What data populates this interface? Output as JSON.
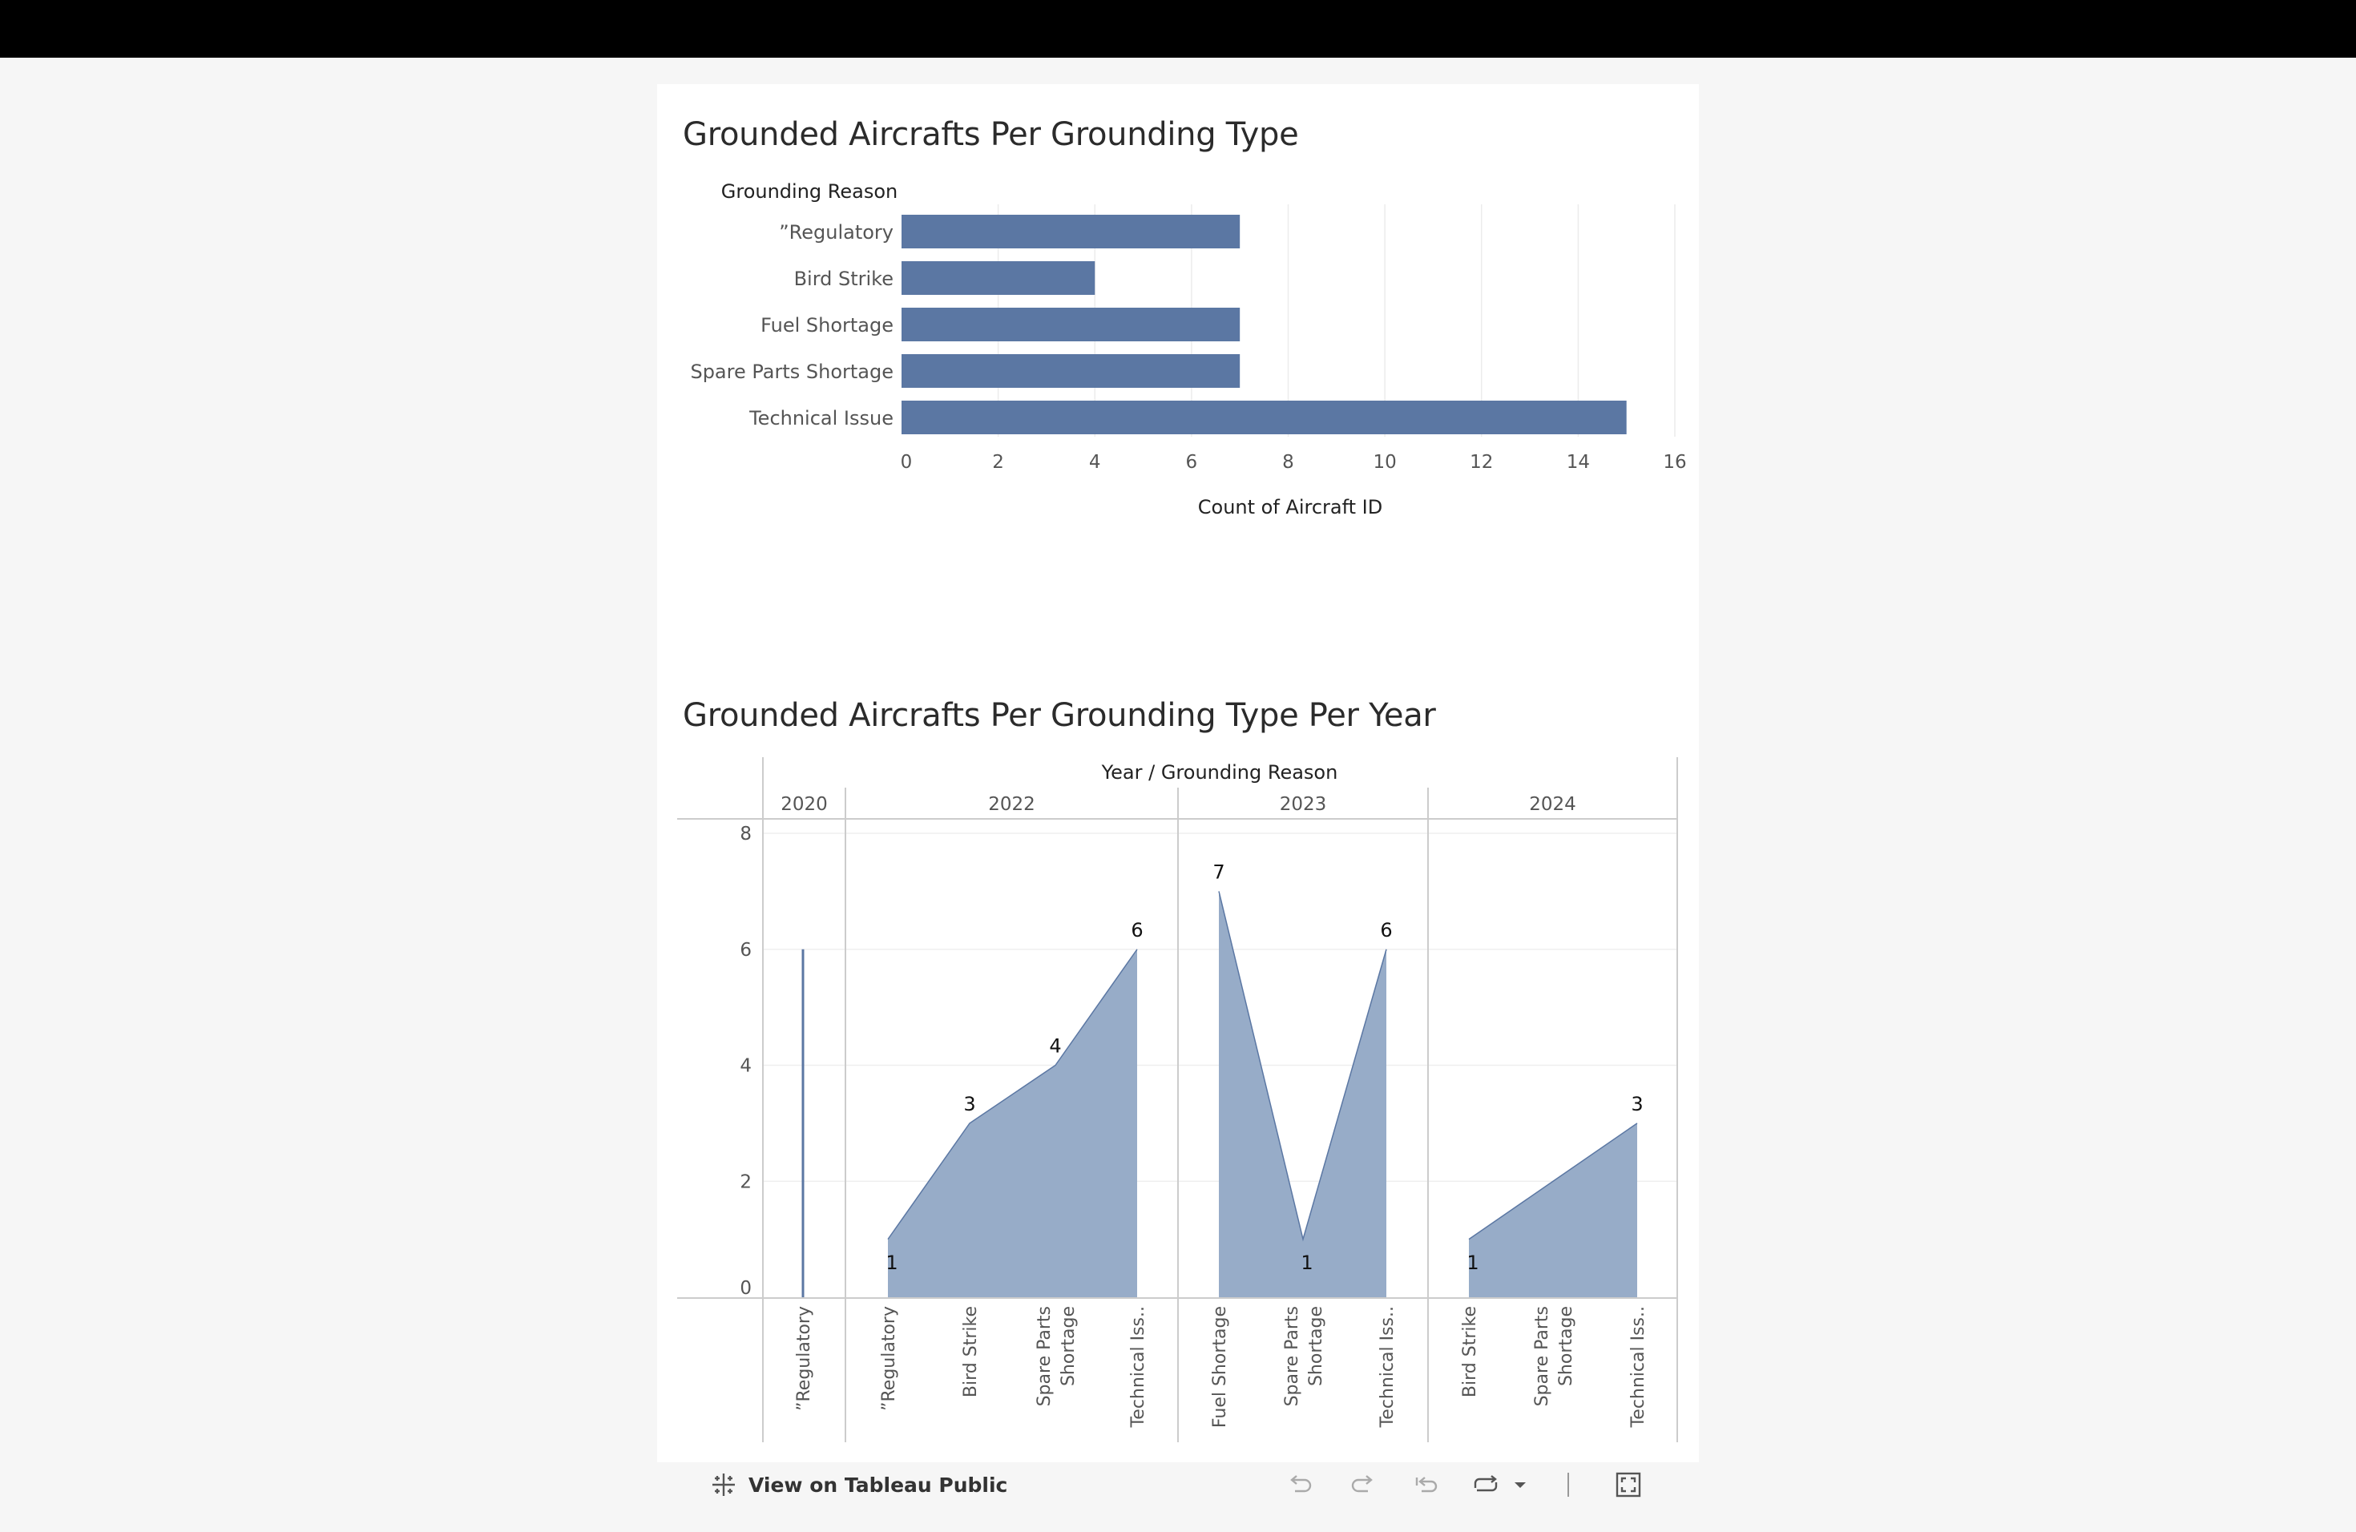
{
  "charts": {
    "chart1": {
      "title": "Grounded Aircrafts Per Grounding Type"
    },
    "chart2": {
      "title": "Grounded Aircrafts Per Grounding Type Per Year"
    }
  },
  "toolbar": {
    "view_label": "View on Tableau Public",
    "icons": [
      "tableau-logo-icon",
      "undo-icon",
      "redo-icon",
      "revert-icon",
      "refresh-icon",
      "dropdown-caret-icon",
      "fullscreen-icon"
    ]
  },
  "colors": {
    "bar": "#5b77a3",
    "area_fill": "#97acc8",
    "area_stroke": "#5b77a3"
  },
  "chart_data": [
    {
      "type": "bar",
      "orientation": "horizontal",
      "title": "Grounded Aircrafts Per Grounding Type",
      "category_header": "Grounding Reason",
      "xlabel": "Count of Aircraft ID",
      "categories": [
        "”Regulatory",
        "Bird Strike",
        "Fuel Shortage",
        "Spare Parts Shortage",
        "Technical Issue"
      ],
      "values": [
        7,
        4,
        7,
        7,
        15
      ],
      "xlim": [
        0,
        16
      ],
      "xticks": [
        0,
        2,
        4,
        6,
        8,
        10,
        12,
        14,
        16
      ],
      "grid": true
    },
    {
      "type": "area",
      "title": "Grounded Aircrafts Per Grounding Type Per Year",
      "xheader": "Year / Grounding Reason",
      "ylabel": "Count of Aircraft ID",
      "ylim": [
        0,
        8
      ],
      "yticks": [
        0,
        2,
        4,
        6,
        8
      ],
      "grid": true,
      "panels": [
        {
          "year": "2020",
          "categories": [
            [
              "”Regulatory"
            ]
          ],
          "values": [
            6
          ],
          "labels": [
            null
          ]
        },
        {
          "year": "2022",
          "categories": [
            [
              "”Regulatory"
            ],
            [
              "Bird Strike"
            ],
            [
              "Spare Parts",
              "Shortage"
            ],
            [
              "Technical Iss.."
            ]
          ],
          "values": [
            1,
            3,
            4,
            6
          ],
          "labels": [
            "1",
            "3",
            "4",
            "6"
          ]
        },
        {
          "year": "2023",
          "categories": [
            [
              "Fuel Shortage"
            ],
            [
              "Spare Parts",
              "Shortage"
            ],
            [
              "Technical Iss.."
            ]
          ],
          "values": [
            7,
            1,
            6
          ],
          "labels": [
            "7",
            "1",
            "6"
          ]
        },
        {
          "year": "2024",
          "categories": [
            [
              "Bird Strike"
            ],
            [
              "Spare Parts",
              "Shortage"
            ],
            [
              "Technical Iss.."
            ]
          ],
          "values": [
            1,
            2,
            3
          ],
          "labels": [
            "1",
            null,
            "3"
          ]
        }
      ]
    }
  ]
}
